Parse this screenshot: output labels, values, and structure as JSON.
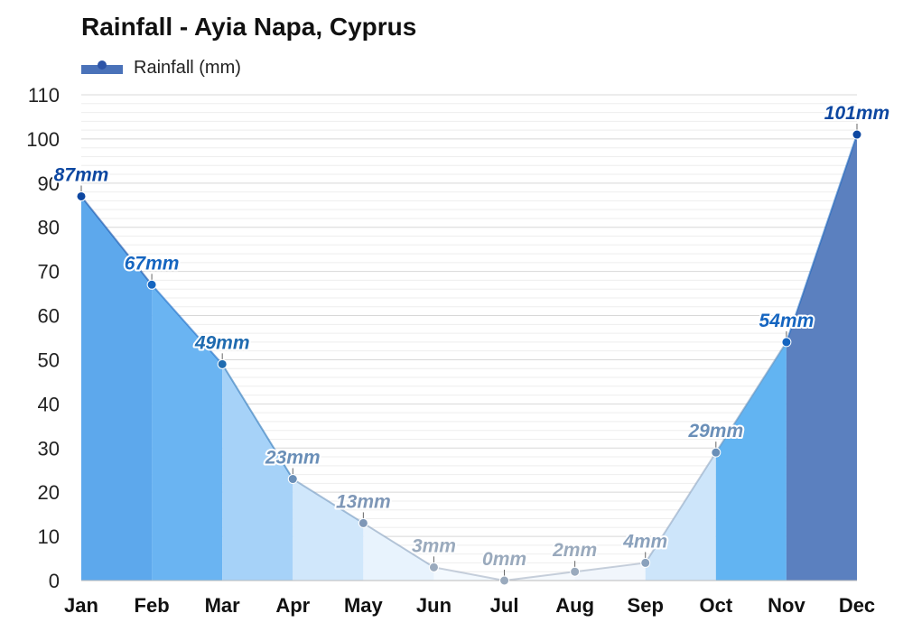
{
  "chart_data": {
    "type": "area",
    "title": "Rainfall - Ayia Napa, Cyprus",
    "categories": [
      "Jan",
      "Feb",
      "Mar",
      "Apr",
      "May",
      "Jun",
      "Jul",
      "Aug",
      "Sep",
      "Oct",
      "Nov",
      "Dec"
    ],
    "series": [
      {
        "name": "Rainfall (mm)",
        "values": [
          87,
          67,
          49,
          23,
          13,
          3,
          0,
          2,
          4,
          29,
          54,
          101
        ],
        "data_labels": [
          "87mm",
          "67mm",
          "49mm",
          "23mm",
          "13mm",
          "3mm",
          "0mm",
          "2mm",
          "4mm",
          "29mm",
          "54mm",
          "101mm"
        ]
      }
    ],
    "ylim": [
      0,
      110
    ],
    "yticks": [
      "0",
      "10",
      "20",
      "30",
      "40",
      "50",
      "60",
      "70",
      "80",
      "90",
      "100",
      "110"
    ],
    "grid": true,
    "legend_position": "top-left",
    "colors": {
      "legend": "#2d55a8",
      "legend_fill": "#4a72b9",
      "segment_fills": [
        "#5da8ec",
        "#6ab4f2",
        "#a6d2f8",
        "#d0e7fb",
        "#e8f3fd",
        "#f3f9fe",
        "#f5f9fd",
        "#f1f6fc",
        "#cde5fa",
        "#62b4f2",
        "#5b80bf",
        "#5b80bf"
      ],
      "label_colors": [
        "#0d47a1",
        "#1565c0",
        "#1f6bb0",
        "#6a8fb8",
        "#7e97b7",
        "#9aaabd",
        "#9aaabd",
        "#9aaabd",
        "#8aa1bc",
        "#6a8fb8",
        "#1565c0",
        "#0d47a1"
      ]
    }
  }
}
